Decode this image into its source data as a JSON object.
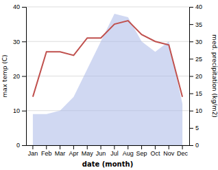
{
  "chart_data": {
    "type": "line",
    "xlabel": "date (month)",
    "ylabel": "max temp (C)",
    "y2label": "med. precipitation (kg/m2)",
    "categories": [
      "Jan",
      "Feb",
      "Mar",
      "Apr",
      "May",
      "Jun",
      "Jul",
      "Aug",
      "Sep",
      "Oct",
      "Nov",
      "Dec"
    ],
    "series": [
      {
        "type": "area",
        "color": "#aab8e8",
        "axis": "y2",
        "values": [
          9,
          9,
          10,
          14,
          22,
          30,
          38,
          37,
          30,
          27,
          30,
          12
        ]
      },
      {
        "type": "line",
        "color": "#c0504d",
        "values": [
          14,
          27,
          27,
          26,
          31,
          31,
          35,
          36,
          32,
          30,
          29,
          14
        ]
      }
    ],
    "ylim": [
      0,
      40
    ],
    "yticks": [
      0,
      10,
      20,
      30,
      40
    ],
    "y2lim": [
      0,
      40
    ],
    "y2ticks": [
      0,
      5,
      10,
      15,
      20,
      25,
      30,
      35,
      40
    ],
    "grid": true
  }
}
